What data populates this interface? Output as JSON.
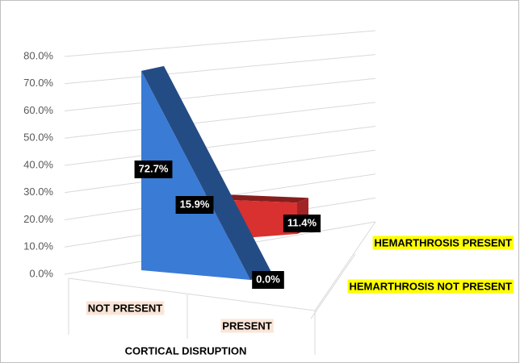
{
  "chart_data": {
    "type": "area3d",
    "categories": [
      "NOT PRESENT",
      "PRESENT"
    ],
    "x_label": "CORTICAL DISRUPTION",
    "series": [
      {
        "name": "HEMARTHROSIS NOT PRESENT",
        "color": "#3a7bd5",
        "values": [
          72.7,
          0.0
        ],
        "value_labels": [
          "72.7%",
          "0.0%"
        ]
      },
      {
        "name": "HEMARTHROSIS PRESENT",
        "color": "#d93030",
        "values": [
          15.9,
          11.4
        ],
        "value_labels": [
          "15.9%",
          "11.4%"
        ]
      }
    ],
    "ylim": [
      0,
      80
    ],
    "yticks": [
      {
        "value": 0,
        "label": "0.0%"
      },
      {
        "value": 10,
        "label": "10.0%"
      },
      {
        "value": 20,
        "label": "20.0%"
      },
      {
        "value": 30,
        "label": "30.0%"
      },
      {
        "value": 40,
        "label": "40.0%"
      },
      {
        "value": 50,
        "label": "50.0%"
      },
      {
        "value": 60,
        "label": "60.0%"
      },
      {
        "value": 70,
        "label": "70.0%"
      },
      {
        "value": 80,
        "label": "80.0%"
      }
    ],
    "grid": true
  }
}
